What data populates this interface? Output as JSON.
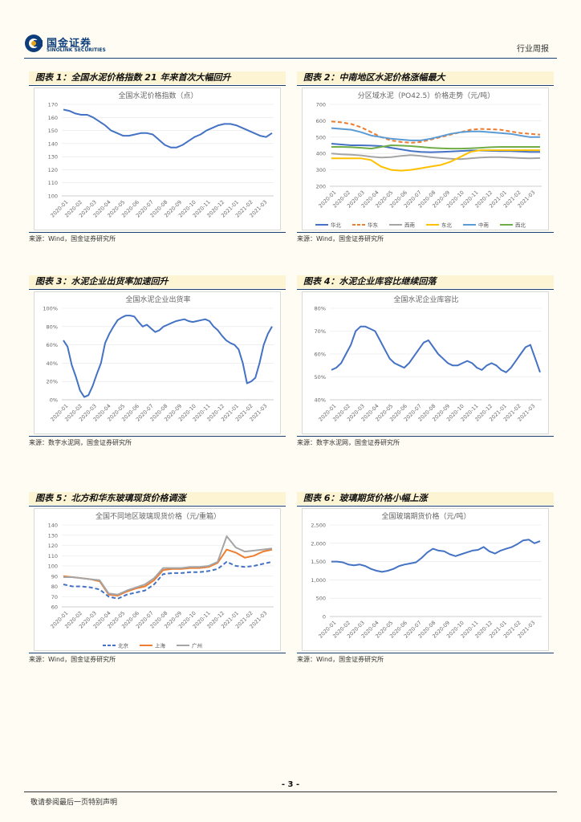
{
  "header": {
    "logo_cn": "国金证券",
    "logo_en": "SINOLINK SECURITIES",
    "report_type": "行业周报"
  },
  "footer": {
    "page_number": "- 3 -",
    "note": "敬请参阅最后一页特别声明"
  },
  "colors": {
    "blue": "#4472c4",
    "orange": "#ed7d31",
    "gray": "#a5a5a5",
    "yellow": "#ffc000",
    "lightblue": "#5b9bd5",
    "green": "#70ad47",
    "navy": "#1d3f73"
  },
  "figures": [
    {
      "title": "图表 1：全国水泥价格指数 21 年来首次大幅回升",
      "source": "来源：Wind，国金证券研究所",
      "chart_data": {
        "type": "line",
        "title": "全国水泥价格指数（点）",
        "ylim": [
          100,
          170
        ],
        "yticks": [
          100,
          110,
          120,
          130,
          140,
          150,
          160,
          170
        ],
        "ytick_labels": [
          "100",
          "110",
          "120",
          "130",
          "140",
          "150",
          "160",
          "170"
        ],
        "xlabels": [
          "2020-01",
          "2020-02",
          "2020-03",
          "2020-04",
          "2020-05",
          "2020-06",
          "2020-07",
          "2020-08",
          "2020-09",
          "2020-10",
          "2020-11",
          "2020-12",
          "2021-01",
          "2021-02",
          "2021-03"
        ],
        "series": [
          {
            "name": "全国水泥价格指数",
            "color": "#4472c4",
            "dash": false,
            "values": [
              166,
              165,
              163,
              162,
              162,
              160,
              157,
              154,
              150,
              148,
              146,
              146,
              147,
              148,
              148,
              147,
              143,
              139,
              137,
              137,
              139,
              142,
              145,
              147,
              150,
              152,
              154,
              155,
              155,
              154,
              152,
              150,
              148,
              146,
              145,
              148
            ]
          }
        ]
      }
    },
    {
      "title": "图表 2：中南地区水泥价格涨幅最大",
      "source": "来源：Wind，国金证券研究所",
      "chart_data": {
        "type": "line",
        "title": "分区域水泥（PO42.5）价格走势（元/吨）",
        "ylim": [
          200,
          700
        ],
        "yticks": [
          200,
          300,
          400,
          500,
          600,
          700
        ],
        "ytick_labels": [
          "200",
          "300",
          "400",
          "500",
          "600",
          "700"
        ],
        "xlabels": [
          "2020-01",
          "2020-02",
          "2020-03",
          "2020-04",
          "2020-05",
          "2020-06",
          "2020-07",
          "2020-08",
          "2020-09",
          "2020-10",
          "2020-11",
          "2020-12",
          "2021-01",
          "2021-02",
          "2021-03"
        ],
        "legend": [
          "华北",
          "华东",
          "西南",
          "东北",
          "中南",
          "西北"
        ],
        "series": [
          {
            "name": "华北",
            "color": "#4472c4",
            "dash": false,
            "values": [
              460,
              455,
              450,
              450,
              448,
              445,
              435,
              425,
              415,
              410,
              408,
              410,
              412,
              415,
              418,
              418,
              416,
              414,
              414,
              412,
              410,
              410
            ]
          },
          {
            "name": "华东",
            "color": "#ed7d31",
            "dash": true,
            "values": [
              595,
              590,
              580,
              560,
              530,
              500,
              480,
              470,
              465,
              470,
              485,
              500,
              515,
              530,
              545,
              550,
              548,
              545,
              535,
              525,
              520,
              515
            ]
          },
          {
            "name": "西南",
            "color": "#a5a5a5",
            "dash": false,
            "values": [
              400,
              395,
              392,
              388,
              380,
              375,
              378,
              385,
              390,
              385,
              378,
              372,
              368,
              365,
              370,
              375,
              378,
              378,
              375,
              372,
              370,
              372
            ]
          },
          {
            "name": "东北",
            "color": "#ffc000",
            "dash": false,
            "values": [
              370,
              370,
              370,
              370,
              360,
              320,
              300,
              295,
              300,
              310,
              320,
              330,
              350,
              380,
              410,
              420,
              420,
              420,
              420,
              420,
              420,
              420
            ]
          },
          {
            "name": "中南",
            "color": "#5b9bd5",
            "dash": false,
            "values": [
              555,
              550,
              545,
              530,
              510,
              500,
              490,
              485,
              480,
              480,
              490,
              505,
              520,
              530,
              535,
              535,
              530,
              525,
              520,
              510,
              500,
              500
            ]
          },
          {
            "name": "西北",
            "color": "#70ad47",
            "dash": false,
            "values": [
              440,
              440,
              438,
              435,
              430,
              440,
              450,
              448,
              445,
              440,
              435,
              432,
              430,
              430,
              432,
              435,
              438,
              440,
              440,
              440,
              440,
              440
            ]
          }
        ]
      }
    },
    {
      "title": "图表 3：水泥企业出货率加速回升",
      "source": "来源：数字水泥网，国金证券研究所",
      "chart_data": {
        "type": "line",
        "title": "全国水泥企业出货率",
        "ylim": [
          0,
          100
        ],
        "yticks": [
          0,
          20,
          40,
          60,
          80,
          100
        ],
        "ytick_labels": [
          "0%",
          "20%",
          "40%",
          "60%",
          "80%",
          "100%"
        ],
        "xlabels": [
          "2020-01",
          "2020-02",
          "2020-03",
          "2020-04",
          "2020-05",
          "2020-06",
          "2020-07",
          "2020-08",
          "2020-09",
          "2020-10",
          "2020-11",
          "2020-12",
          "2021-01",
          "2021-02",
          "2021-03"
        ],
        "series": [
          {
            "name": "全国水泥企业出货率",
            "color": "#4472c4",
            "dash": false,
            "values": [
              65,
              58,
              38,
              25,
              10,
              3,
              5,
              15,
              28,
              40,
              62,
              72,
              80,
              87,
              90,
              92,
              92,
              91,
              85,
              80,
              82,
              78,
              74,
              76,
              80,
              82,
              84,
              86,
              87,
              88,
              86,
              85,
              86,
              87,
              88,
              86,
              80,
              76,
              70,
              65,
              62,
              60,
              55,
              40,
              18,
              20,
              24,
              40,
              60,
              72,
              80
            ]
          }
        ]
      }
    },
    {
      "title": "图表 4：水泥企业库容比继续回落",
      "source": "来源：数字水泥网，国金证券研究所",
      "chart_data": {
        "type": "line",
        "title": "全国水泥企业库容比",
        "ylim": [
          40,
          80
        ],
        "yticks": [
          40,
          50,
          60,
          70,
          80
        ],
        "ytick_labels": [
          "40%",
          "50%",
          "60%",
          "70%",
          "80%"
        ],
        "xlabels": [
          "2020-01",
          "2020-02",
          "2020-03",
          "2020-04",
          "2020-05",
          "2020-06",
          "2020-07",
          "2020-08",
          "2020-09",
          "2020-10",
          "2020-11",
          "2020-12",
          "2021-01",
          "2021-02",
          "2021-03"
        ],
        "series": [
          {
            "name": "全国水泥企业库容比",
            "color": "#4472c4",
            "dash": false,
            "values": [
              53,
              54,
              56,
              60,
              64,
              70,
              72,
              72,
              71,
              70,
              66,
              62,
              58,
              56,
              55,
              54,
              56,
              59,
              62,
              65,
              66,
              63,
              60,
              58,
              56,
              55,
              55,
              56,
              57,
              56,
              54,
              53,
              55,
              56,
              55,
              53,
              52,
              54,
              57,
              60,
              63,
              64,
              58,
              52
            ]
          }
        ]
      }
    },
    {
      "title": "图表 5：北方和华东玻璃现货价格调涨",
      "source": "来源：Wind，国金证券研究所",
      "chart_data": {
        "type": "line",
        "title": "全国不同地区玻璃现货价格（元/重箱）",
        "ylim": [
          60,
          140
        ],
        "yticks": [
          60,
          70,
          80,
          90,
          100,
          110,
          120,
          130,
          140
        ],
        "ytick_labels": [
          "60",
          "70",
          "80",
          "90",
          "100",
          "110",
          "120",
          "130",
          "140"
        ],
        "xlabels": [
          "2020-01",
          "2020-02",
          "2020-03",
          "2020-04",
          "2020-05",
          "2020-06",
          "2020-07",
          "2020-08",
          "2020-09",
          "2020-10",
          "2020-11",
          "2020-12",
          "2021-01",
          "2021-02",
          "2021-03"
        ],
        "legend": [
          "北京",
          "上海",
          "广州"
        ],
        "series": [
          {
            "name": "北京",
            "color": "#4472c4",
            "dash": true,
            "values": [
              82,
              80,
              80,
              79,
              77,
              70,
              68,
              72,
              74,
              76,
              82,
              92,
              93,
              93,
              94,
              94,
              95,
              97,
              104,
              100,
              99,
              100,
              102,
              104
            ]
          },
          {
            "name": "上海",
            "color": "#ed7d31",
            "dash": false,
            "values": [
              90,
              89,
              88,
              87,
              85,
              72,
              71,
              75,
              78,
              80,
              86,
              96,
              97,
              97,
              98,
              98,
              99,
              103,
              116,
              113,
              108,
              110,
              114,
              116
            ]
          },
          {
            "name": "广州",
            "color": "#a5a5a5",
            "dash": false,
            "values": [
              89,
              89,
              88,
              87,
              86,
              73,
              72,
              76,
              79,
              82,
              88,
              98,
              98,
              98,
              99,
              99,
              100,
              104,
              129,
              118,
              114,
              115,
              116,
              117
            ]
          }
        ]
      }
    },
    {
      "title": "图表 6：玻璃期货价格小幅上涨",
      "source": "来源：Wind，国金证券研究所",
      "chart_data": {
        "type": "line",
        "title": "全国玻璃期货价格（元/吨）",
        "ylim": [
          0,
          2500
        ],
        "yticks": [
          0,
          500,
          1000,
          1500,
          2000,
          2500
        ],
        "ytick_labels": [
          "0",
          "500",
          "1,000",
          "1,500",
          "2,000",
          "2,500"
        ],
        "xlabels": [
          "2020-01",
          "2020-02",
          "2020-03",
          "2020-04",
          "2020-05",
          "2020-06",
          "2020-07",
          "2020-08",
          "2020-09",
          "2020-10",
          "2020-11",
          "2020-12",
          "2021-01",
          "2021-02",
          "2021-03"
        ],
        "series": [
          {
            "name": "全国玻璃期货价格",
            "color": "#4472c4",
            "dash": false,
            "values": [
              1500,
              1500,
              1480,
              1420,
              1400,
              1420,
              1380,
              1300,
              1250,
              1220,
              1250,
              1300,
              1380,
              1420,
              1450,
              1480,
              1600,
              1750,
              1850,
              1800,
              1780,
              1700,
              1650,
              1700,
              1750,
              1800,
              1820,
              1900,
              1780,
              1720,
              1800,
              1850,
              1900,
              1980,
              2080,
              2100,
              2000,
              2060
            ]
          }
        ]
      }
    }
  ]
}
